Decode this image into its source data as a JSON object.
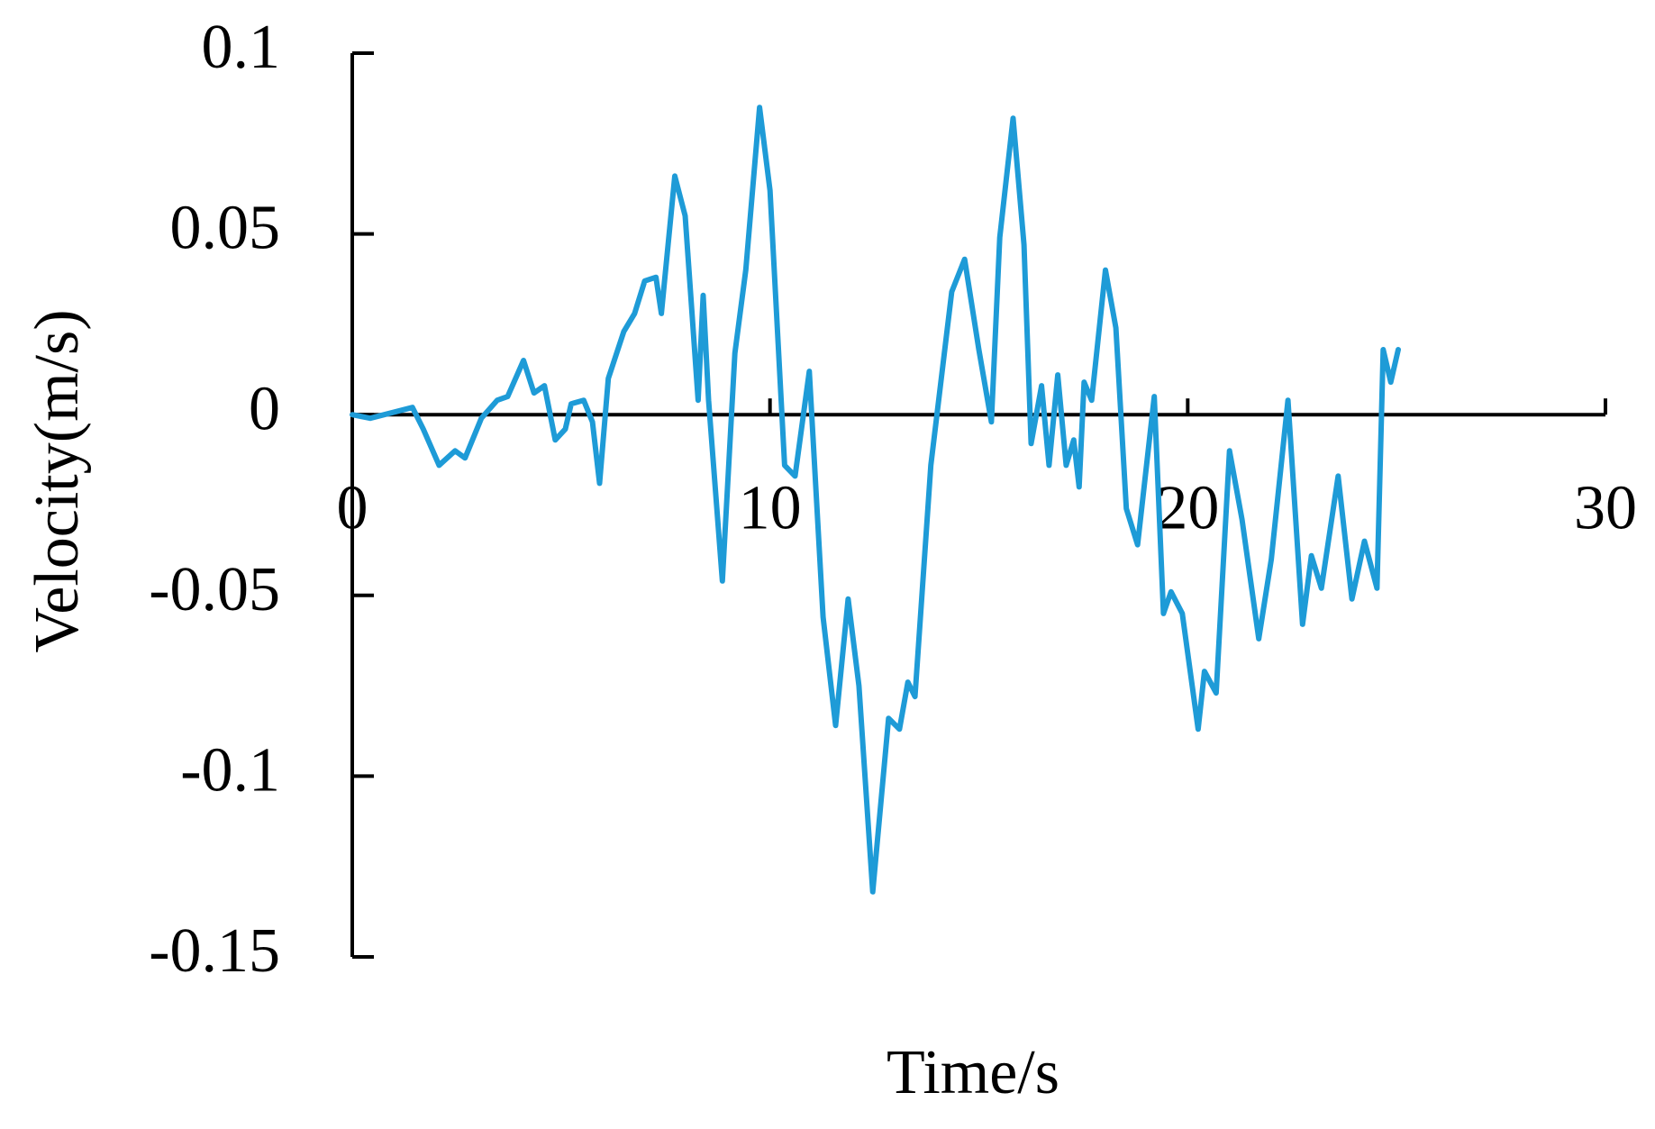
{
  "chart_data": {
    "type": "line",
    "x_label": "Time/s",
    "y_label": "Velocity(m/s)",
    "xlim": [
      0,
      30
    ],
    "xticks": [
      0,
      10,
      20,
      30
    ],
    "ylim": [
      -0.15,
      0.1
    ],
    "yticks": [
      -0.15,
      -0.1,
      -0.05,
      0,
      0.05,
      0.1
    ],
    "color": "#1e9bd7",
    "x": [
      0,
      0.43,
      1.44,
      1.7,
      2.08,
      2.46,
      2.7,
      3.09,
      3.47,
      3.72,
      4.1,
      4.35,
      4.6,
      4.86,
      5.1,
      5.24,
      5.54,
      5.75,
      5.92,
      6.13,
      6.5,
      6.76,
      7.0,
      7.27,
      7.4,
      7.72,
      7.97,
      8.28,
      8.4,
      8.53,
      8.86,
      9.16,
      9.42,
      9.75,
      10.0,
      10.35,
      10.6,
      10.94,
      11.27,
      11.57,
      11.87,
      12.13,
      12.46,
      12.84,
      13.1,
      13.3,
      13.47,
      13.85,
      14.35,
      14.66,
      15.0,
      15.3,
      15.5,
      15.82,
      16.08,
      16.25,
      16.5,
      16.68,
      16.89,
      17.09,
      17.27,
      17.4,
      17.52,
      17.7,
      18.03,
      18.28,
      18.53,
      18.8,
      19.2,
      19.42,
      19.6,
      19.87,
      20.25,
      20.4,
      20.68,
      21.0,
      21.3,
      21.7,
      22.0,
      22.4,
      22.75,
      22.96,
      23.2,
      23.6,
      23.93,
      24.23,
      24.53,
      24.68,
      24.86,
      25.04
    ],
    "values": [
      0,
      -0.001,
      0.002,
      -0.004,
      -0.014,
      -0.01,
      -0.012,
      -0.001,
      0.004,
      0.005,
      0.015,
      0.006,
      0.008,
      -0.007,
      -0.004,
      0.003,
      0.004,
      -0.002,
      -0.019,
      0.01,
      0.023,
      0.028,
      0.037,
      0.038,
      0.028,
      0.066,
      0.055,
      0.004,
      0.033,
      0.004,
      -0.046,
      0.017,
      0.04,
      0.085,
      0.062,
      -0.014,
      -0.017,
      0.012,
      -0.056,
      -0.086,
      -0.051,
      -0.075,
      -0.132,
      -0.084,
      -0.087,
      -0.074,
      -0.078,
      -0.014,
      0.034,
      0.043,
      0.018,
      -0.002,
      0.049,
      0.082,
      0.047,
      -0.008,
      0.008,
      -0.014,
      0.011,
      -0.014,
      -0.007,
      -0.02,
      0.009,
      0.004,
      0.04,
      0.024,
      -0.026,
      -0.036,
      0.005,
      -0.055,
      -0.049,
      -0.055,
      -0.087,
      -0.071,
      -0.077,
      -0.01,
      -0.029,
      -0.062,
      -0.04,
      0.004,
      -0.058,
      -0.039,
      -0.048,
      -0.017,
      -0.051,
      -0.035,
      -0.048,
      0.018,
      0.009,
      0.018
    ]
  }
}
